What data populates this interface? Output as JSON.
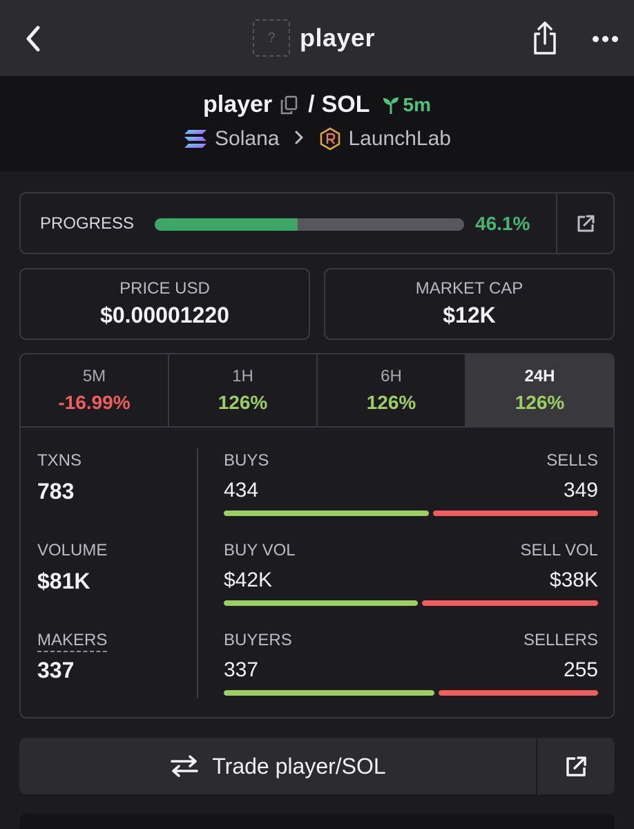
{
  "nav": {
    "title": "player",
    "token_placeholder": "?"
  },
  "pair": {
    "base": "player",
    "separator": "/",
    "quote": "SOL",
    "age": "5m"
  },
  "chain": {
    "name": "Solana",
    "dex": "LaunchLab"
  },
  "progress": {
    "label": "PROGRESS",
    "value_text": "46.1%",
    "percent": 46.1
  },
  "price": {
    "label": "PRICE USD",
    "value": "$0.00001220"
  },
  "mcap": {
    "label": "MARKET CAP",
    "value": "$12K"
  },
  "timeframes": [
    {
      "name": "5M",
      "change": "-16.99%",
      "direction": "down"
    },
    {
      "name": "1H",
      "change": "126%",
      "direction": "up"
    },
    {
      "name": "6H",
      "change": "126%",
      "direction": "up"
    },
    {
      "name": "24H",
      "change": "126%",
      "direction": "up",
      "active": true
    }
  ],
  "metrics": {
    "txns": {
      "label": "TXNS",
      "value": "783"
    },
    "volume": {
      "label": "VOLUME",
      "value": "$81K"
    },
    "makers": {
      "label": "MAKERS",
      "value": "337"
    }
  },
  "splits": {
    "txns": {
      "left_label": "BUYS",
      "right_label": "SELLS",
      "left_value": "434",
      "right_value": "349",
      "left_num": 434,
      "right_num": 349
    },
    "volume": {
      "left_label": "BUY VOL",
      "right_label": "SELL VOL",
      "left_value": "$42K",
      "right_value": "$38K",
      "left_num": 42,
      "right_num": 38
    },
    "makers": {
      "left_label": "BUYERS",
      "right_label": "SELLERS",
      "left_value": "337",
      "right_value": "255",
      "left_num": 337,
      "right_num": 255
    }
  },
  "trade": {
    "label": "Trade player/SOL"
  },
  "icons": {
    "back": "chevron-left-icon",
    "share": "share-icon",
    "more": "more-horizontal-icon",
    "copy": "copy-icon",
    "age": "seedling-icon",
    "chain": "solana-logo-icon",
    "dex": "raydium-logo-icon",
    "external": "external-link-icon",
    "swap": "swap-arrows-icon"
  },
  "colors": {
    "positive": "#9ccf62",
    "negative": "#ef5d5d",
    "progress": "#3da768",
    "age": "#4cc47c"
  }
}
